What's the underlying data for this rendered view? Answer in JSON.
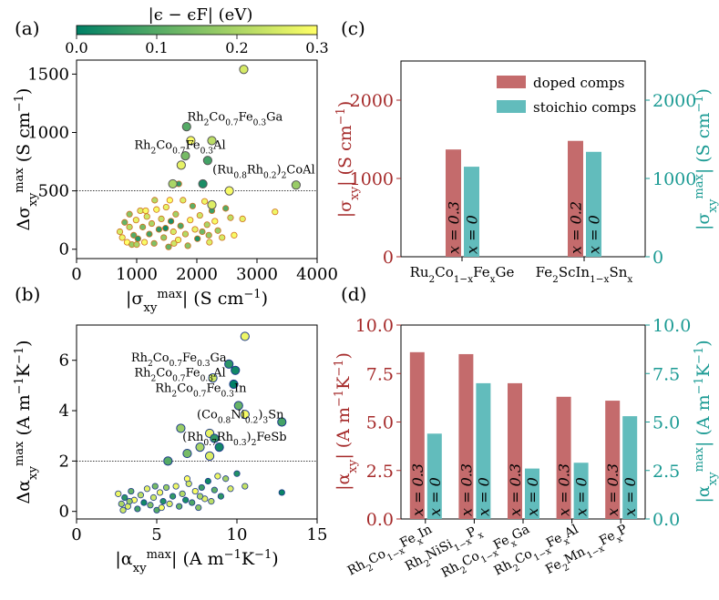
{
  "panel_labels": [
    "(a)",
    "(b)",
    "(c)",
    "(d)"
  ],
  "colorbar": {
    "label": "|ϵ − ϵF| (eV)",
    "range": [
      0.0,
      0.3
    ],
    "ticks": [
      "0.0",
      "0.1",
      "0.2",
      "0.3"
    ],
    "colormap": "summer",
    "colors": {
      "low": "#008066",
      "high": "#ffff66"
    }
  },
  "colors": {
    "doped": "#c46b6c",
    "stoichio": "#62bcbc",
    "doped_axis": "#a52a2a",
    "stoichio_axis": "#1a9a93",
    "edge_a": "#d07020",
    "edge_b": "#1e3a8a"
  },
  "chart_data": [
    {
      "id": "a",
      "type": "scatter",
      "xlabel": "|σ_xy^max| (S cm⁻¹)",
      "ylabel": "Δσ_xy^max (S cm⁻¹)",
      "xlim": [
        0,
        4000
      ],
      "ylim": [
        -80,
        1620
      ],
      "xticks": [
        0,
        1000,
        2000,
        3000,
        4000
      ],
      "yticks": [
        0,
        500,
        1000,
        1500
      ],
      "hline": 500,
      "grid": false,
      "small_points": [
        [
          720,
          150,
          0.25
        ],
        [
          760,
          100,
          0.28
        ],
        [
          800,
          230,
          0.12
        ],
        [
          840,
          60,
          0.3
        ],
        [
          880,
          190,
          0.22
        ],
        [
          920,
          40,
          0.18
        ],
        [
          950,
          120,
          0.1
        ],
        [
          990,
          250,
          0.27
        ],
        [
          1020,
          90,
          0.05
        ],
        [
          1060,
          330,
          0.26
        ],
        [
          1100,
          190,
          0.14
        ],
        [
          1130,
          60,
          0.29
        ],
        [
          1170,
          280,
          0.24
        ],
        [
          1210,
          130,
          0.08
        ],
        [
          1250,
          220,
          0.2
        ],
        [
          1290,
          50,
          0.15
        ],
        [
          1330,
          340,
          0.29
        ],
        [
          1370,
          170,
          0.06
        ],
        [
          1410,
          260,
          0.23
        ],
        [
          1450,
          100,
          0.17
        ],
        [
          1490,
          360,
          0.27
        ],
        [
          1530,
          20,
          0.12
        ],
        [
          1570,
          240,
          0.03
        ],
        [
          1610,
          150,
          0.25
        ],
        [
          1650,
          300,
          0.19
        ],
        [
          1690,
          80,
          0.28
        ],
        [
          1730,
          200,
          0.09
        ],
        [
          1770,
          420,
          0.26
        ],
        [
          1810,
          130,
          0.21
        ],
        [
          1850,
          30,
          0.16
        ],
        [
          1890,
          250,
          0.29
        ],
        [
          1930,
          370,
          0.11
        ],
        [
          1970,
          170,
          0.27
        ],
        [
          2010,
          90,
          0.04
        ],
        [
          2050,
          290,
          0.24
        ],
        [
          2090,
          150,
          0.13
        ],
        [
          2130,
          410,
          0.28
        ],
        [
          2170,
          210,
          0.2
        ],
        [
          2210,
          60,
          0.26
        ],
        [
          2250,
          330,
          0.07
        ],
        [
          2300,
          240,
          0.29
        ],
        [
          2350,
          160,
          0.18
        ],
        [
          2420,
          100,
          0.25
        ],
        [
          2480,
          350,
          0.1
        ],
        [
          2560,
          270,
          0.22
        ],
        [
          2620,
          120,
          0.29
        ],
        [
          2760,
          260,
          0.27
        ],
        [
          3300,
          320,
          0.28
        ],
        [
          1000,
          40,
          0.2
        ],
        [
          1550,
          420,
          0.3
        ],
        [
          1480,
          180,
          0.02
        ],
        [
          2200,
          120,
          0.17
        ],
        [
          1150,
          330,
          0.29
        ],
        [
          1300,
          420,
          0.21
        ],
        [
          1700,
          560,
          0.06
        ],
        [
          2550,
          500,
          0.27
        ],
        [
          1620,
          50,
          0.24
        ],
        [
          880,
          300,
          0.16
        ]
      ],
      "large_points": [
        [
          2780,
          1540,
          0.25
        ],
        [
          1830,
          1050,
          0.1
        ],
        [
          1900,
          930,
          0.29
        ],
        [
          2250,
          930,
          0.22
        ],
        [
          1740,
          720,
          0.27
        ],
        [
          1810,
          800,
          0.14
        ],
        [
          2180,
          760,
          0.08
        ],
        [
          1600,
          560,
          0.2
        ],
        [
          2100,
          560,
          0.03
        ],
        [
          2540,
          500,
          0.29
        ],
        [
          3650,
          550,
          0.18
        ],
        [
          2250,
          380,
          0.26
        ]
      ],
      "annotations": [
        {
          "x": 1840,
          "y": 1100,
          "parts": [
            [
              "Rh",
              ""
            ],
            [
              "2",
              ""
            ],
            [
              "Co",
              ""
            ],
            [
              "0.7",
              ""
            ],
            [
              "Fe",
              ""
            ],
            [
              "0.3",
              ""
            ],
            [
              "Ga",
              ""
            ]
          ]
        },
        {
          "x": 960,
          "y": 860,
          "parts": [
            [
              "Rh",
              ""
            ],
            [
              "2",
              ""
            ],
            [
              "Co",
              ""
            ],
            [
              "0.7",
              ""
            ],
            [
              "Fe",
              ""
            ],
            [
              "0.3",
              ""
            ],
            [
              "Al",
              ""
            ]
          ]
        },
        {
          "x": 2260,
          "y": 650,
          "parts": [
            [
              "(Ru",
              ""
            ],
            [
              "0.8",
              ""
            ],
            [
              "Rh",
              ""
            ],
            [
              "0.2",
              ""
            ],
            [
              ")",
              ""
            ],
            [
              "2",
              ""
            ],
            [
              "CoAl",
              ""
            ]
          ]
        }
      ]
    },
    {
      "id": "b",
      "type": "scatter",
      "xlabel": "|α_xy^max| (A m⁻¹K⁻¹)",
      "ylabel": "Δα_xy^max (A m⁻¹K⁻¹)",
      "xlim": [
        0,
        15
      ],
      "ylim": [
        -0.3,
        7.4
      ],
      "xticks": [
        0,
        5,
        10,
        15
      ],
      "yticks": [
        0,
        2,
        4,
        6
      ],
      "hline": 2,
      "grid": false,
      "small_points": [
        [
          2.6,
          0.7,
          0.28
        ],
        [
          2.8,
          0.3,
          0.2
        ],
        [
          3.0,
          0.55,
          0.05
        ],
        [
          3.2,
          0.2,
          0.26
        ],
        [
          3.4,
          0.8,
          0.12
        ],
        [
          3.6,
          0.45,
          0.3
        ],
        [
          3.8,
          0.1,
          0.08
        ],
        [
          4.0,
          0.65,
          0.22
        ],
        [
          4.2,
          0.35,
          0.02
        ],
        [
          4.4,
          0.9,
          0.27
        ],
        [
          4.6,
          0.25,
          0.15
        ],
        [
          4.8,
          0.55,
          0.24
        ],
        [
          5.0,
          0.05,
          0.1
        ],
        [
          5.2,
          0.75,
          0.29
        ],
        [
          5.4,
          0.4,
          0.04
        ],
        [
          5.6,
          0.95,
          0.18
        ],
        [
          5.8,
          0.3,
          0.26
        ],
        [
          6.0,
          0.6,
          0.06
        ],
        [
          6.2,
          1.0,
          0.28
        ],
        [
          6.4,
          0.2,
          0.12
        ],
        [
          6.6,
          0.7,
          0.21
        ],
        [
          6.8,
          0.45,
          0.03
        ],
        [
          7.0,
          1.1,
          0.25
        ],
        [
          7.2,
          0.35,
          0.09
        ],
        [
          7.4,
          0.8,
          0.29
        ],
        [
          7.6,
          0.15,
          0.16
        ],
        [
          7.8,
          0.95,
          0.07
        ],
        [
          8.0,
          0.5,
          0.27
        ],
        [
          8.2,
          1.2,
          0.02
        ],
        [
          8.4,
          0.4,
          0.22
        ],
        [
          8.6,
          0.85,
          0.11
        ],
        [
          8.8,
          1.4,
          0.28
        ],
        [
          9.0,
          0.6,
          0.05
        ],
        [
          9.3,
          1.3,
          0.19
        ],
        [
          9.6,
          0.9,
          0.26
        ],
        [
          10.0,
          1.5,
          0.04
        ],
        [
          10.5,
          1.0,
          0.23
        ],
        [
          12.8,
          0.75,
          0.01
        ],
        [
          3.3,
          0.4,
          0.18
        ],
        [
          4.9,
          1.0,
          0.14
        ],
        [
          6.9,
          1.3,
          0.3
        ],
        [
          7.7,
          0.6,
          0.2
        ],
        [
          5.3,
          0.15,
          0.29
        ],
        [
          2.9,
          0.05,
          0.24
        ]
      ],
      "large_points": [
        [
          10.5,
          6.95,
          0.28
        ],
        [
          9.5,
          5.85,
          0.05
        ],
        [
          9.9,
          5.6,
          0.02
        ],
        [
          8.5,
          5.3,
          0.24
        ],
        [
          9.8,
          5.05,
          0.0
        ],
        [
          10.1,
          4.2,
          0.12
        ],
        [
          10.5,
          3.85,
          0.29
        ],
        [
          12.8,
          3.55,
          0.08
        ],
        [
          6.5,
          3.3,
          0.18
        ],
        [
          8.3,
          3.1,
          0.27
        ],
        [
          8.6,
          2.9,
          0.06
        ],
        [
          7.7,
          2.55,
          0.2
        ],
        [
          6.9,
          2.3,
          0.14
        ],
        [
          8.9,
          2.55,
          0.02
        ],
        [
          8.3,
          2.2,
          0.26
        ],
        [
          5.7,
          2.0,
          0.1
        ]
      ],
      "annotations": [
        {
          "x": 3.4,
          "y": 5.95,
          "parts": [
            [
              "Rh",
              ""
            ],
            [
              "2",
              ""
            ],
            [
              "Co",
              ""
            ],
            [
              "0.7",
              ""
            ],
            [
              "Fe",
              ""
            ],
            [
              "0.3",
              ""
            ],
            [
              "Ga",
              ""
            ]
          ]
        },
        {
          "x": 3.6,
          "y": 5.35,
          "parts": [
            [
              "Rh",
              ""
            ],
            [
              "2",
              ""
            ],
            [
              "Co",
              ""
            ],
            [
              "0.7",
              ""
            ],
            [
              "Fe",
              ""
            ],
            [
              "0.3",
              ""
            ],
            [
              "Al",
              ""
            ]
          ]
        },
        {
          "x": 4.9,
          "y": 4.75,
          "parts": [
            [
              "Rh",
              ""
            ],
            [
              "2",
              ""
            ],
            [
              "Co",
              ""
            ],
            [
              "0.7",
              ""
            ],
            [
              "Fe",
              ""
            ],
            [
              "0.3",
              ""
            ],
            [
              "In",
              ""
            ]
          ]
        },
        {
          "x": 7.5,
          "y": 3.7,
          "parts": [
            [
              "(Co",
              ""
            ],
            [
              "0.8",
              ""
            ],
            [
              "Ni",
              ""
            ],
            [
              "0.2",
              ""
            ],
            [
              ")",
              ""
            ],
            [
              "3",
              ""
            ],
            [
              "Sn",
              ""
            ]
          ]
        },
        {
          "x": 6.6,
          "y": 2.8,
          "parts": [
            [
              "(Rh",
              ""
            ],
            [
              "0.7",
              ""
            ],
            [
              "Rh",
              ""
            ],
            [
              "0.3",
              ""
            ],
            [
              ")",
              ""
            ],
            [
              "2",
              ""
            ],
            [
              "FeSb",
              ""
            ]
          ]
        }
      ]
    },
    {
      "id": "c",
      "type": "bar",
      "categories": [
        "Ru2Co1−xFexGe",
        "Fe2ScIn1−xSnx"
      ],
      "category_parts": [
        [
          [
            "Ru",
            "n"
          ],
          [
            "2",
            "s"
          ],
          [
            "Co",
            "n"
          ],
          [
            "1−x",
            "s"
          ],
          [
            "Fe",
            "n"
          ],
          [
            "x",
            "s"
          ],
          [
            "Ge",
            "n"
          ]
        ],
        [
          [
            "Fe",
            "n"
          ],
          [
            "2",
            "s"
          ],
          [
            "ScIn",
            "n"
          ],
          [
            "1−x",
            "s"
          ],
          [
            "Sn",
            "n"
          ],
          [
            "x",
            "s"
          ]
        ]
      ],
      "series": [
        {
          "name": "doped comps",
          "values": [
            1370,
            1480
          ],
          "labels": [
            "x = 0.3",
            "x = 0.2"
          ],
          "axis": "left"
        },
        {
          "name": "stoichio comps",
          "values": [
            1150,
            1340
          ],
          "labels": [
            "x = 0",
            "x = 0"
          ],
          "axis": "right"
        }
      ],
      "ylabel_left": "|σxy| (S cm⁻¹)",
      "ylabel_right": "|σxy^max| (S cm⁻¹)",
      "ylim": [
        0,
        2500
      ],
      "yticks_left": [
        0,
        1000,
        2000
      ],
      "yticks_right": [
        0,
        1000,
        2000
      ],
      "legend": "top-right"
    },
    {
      "id": "d",
      "type": "bar",
      "categories": [
        "Rh2Co1−xFexIn",
        "Rh2NiSi1−xPx",
        "Rh2Co1−xFexGa",
        "Rh2Co1−xFexAl",
        "Fe2Mn1−xFexP"
      ],
      "category_parts": [
        [
          [
            "Rh",
            "n"
          ],
          [
            "2",
            "s"
          ],
          [
            "Co",
            "n"
          ],
          [
            "1−x",
            "s"
          ],
          [
            "Fe",
            "n"
          ],
          [
            "x",
            "s"
          ],
          [
            "In",
            "n"
          ]
        ],
        [
          [
            "Rh",
            "n"
          ],
          [
            "2",
            "s"
          ],
          [
            "NiSi",
            "n"
          ],
          [
            "1−x",
            "s"
          ],
          [
            "P",
            "n"
          ],
          [
            "x",
            "s"
          ]
        ],
        [
          [
            "Rh",
            "n"
          ],
          [
            "2",
            "s"
          ],
          [
            "Co",
            "n"
          ],
          [
            "1−x",
            "s"
          ],
          [
            "Fe",
            "n"
          ],
          [
            "x",
            "s"
          ],
          [
            "Ga",
            "n"
          ]
        ],
        [
          [
            "Rh",
            "n"
          ],
          [
            "2",
            "s"
          ],
          [
            "Co",
            "n"
          ],
          [
            "1−x",
            "s"
          ],
          [
            "Fe",
            "n"
          ],
          [
            "x",
            "s"
          ],
          [
            "Al",
            "n"
          ]
        ],
        [
          [
            "Fe",
            "n"
          ],
          [
            "2",
            "s"
          ],
          [
            "Mn",
            "n"
          ],
          [
            "1−x",
            "s"
          ],
          [
            "Fe",
            "n"
          ],
          [
            "x",
            "s"
          ],
          [
            "P",
            "n"
          ]
        ]
      ],
      "series": [
        {
          "name": "doped comps",
          "values": [
            8.6,
            8.5,
            7.0,
            6.3,
            6.1
          ],
          "labels": [
            "x = 0.3",
            "x = 0.3",
            "x = 0.3",
            "x = 0.3",
            "x = 0.3"
          ],
          "axis": "left"
        },
        {
          "name": "stoichio comps",
          "values": [
            4.4,
            7.0,
            2.6,
            2.9,
            5.3
          ],
          "labels": [
            "x = 0",
            "x = 0",
            "x = 0",
            "x = 0",
            "x = 0"
          ],
          "axis": "right"
        }
      ],
      "ylabel_left": "|αxy| (A m⁻¹K⁻¹)",
      "ylabel_right": "|αxy^max| (A m⁻¹K⁻¹)",
      "ylim": [
        0,
        10
      ],
      "yticks_left": [
        "0.0",
        "2.5",
        "5.0",
        "7.5",
        "10.0"
      ],
      "yticks_right": [
        "0.0",
        "2.5",
        "5.0",
        "7.5",
        "10.0"
      ]
    }
  ]
}
